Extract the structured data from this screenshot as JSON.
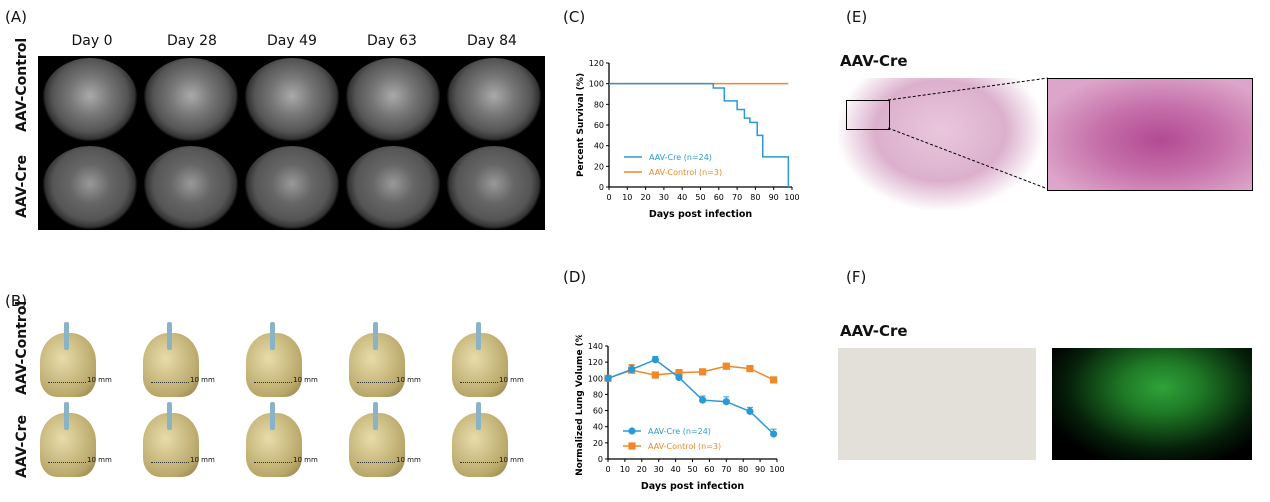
{
  "panels": {
    "a": "(A)",
    "b": "(B)",
    "c": "(C)",
    "d": "(D)",
    "e": "(E)",
    "f": "(F)"
  },
  "panel_a": {
    "days": [
      "Day 0",
      "Day 28",
      "Day 49",
      "Day 63",
      "Day 84"
    ],
    "rows": [
      "AAV-Control",
      "AAV-Cre"
    ]
  },
  "panel_b": {
    "rows": [
      "AAV-Control",
      "AAV-Cre"
    ],
    "scale_label": "10 mm"
  },
  "panel_e": {
    "title": "AAV-Cre"
  },
  "panel_f": {
    "title": "AAV-Cre"
  },
  "colors": {
    "cre": "#2a9ad6",
    "control": "#f0882a"
  },
  "chart_data": [
    {
      "type": "line",
      "title": "",
      "xlabel": "Days post infection",
      "ylabel": "Percent Survival (%)",
      "xlim": [
        0,
        100
      ],
      "ylim": [
        0,
        120
      ],
      "xticks": [
        "0",
        "10",
        "20",
        "30",
        "40",
        "50",
        "60",
        "70",
        "80",
        "90",
        "100"
      ],
      "yticks": [
        "0",
        "20",
        "40",
        "60",
        "80",
        "100",
        "120"
      ],
      "legend": "bottom-left",
      "step": true,
      "series": [
        {
          "name": "AAV-Cre (n=24)",
          "x": [
            0,
            57,
            63,
            70,
            74,
            77,
            81,
            84,
            98
          ],
          "y": [
            100,
            95.8,
            83.3,
            75,
            66.7,
            62.5,
            50,
            29.2,
            0
          ]
        },
        {
          "name": "AAV-Control (n=3)",
          "x": [
            0,
            98
          ],
          "y": [
            100,
            100
          ]
        }
      ]
    },
    {
      "type": "line",
      "title": "",
      "xlabel": "Days post infection",
      "ylabel": "Normalized Lung Volume (%)",
      "xlim": [
        0,
        100
      ],
      "ylim": [
        0,
        140
      ],
      "xticks": [
        "0",
        "10",
        "20",
        "30",
        "40",
        "50",
        "60",
        "70",
        "80",
        "90",
        "100"
      ],
      "yticks": [
        "0",
        "20",
        "40",
        "60",
        "80",
        "100",
        "120",
        "140"
      ],
      "legend": "bottom-left",
      "series": [
        {
          "name": "AAV-Cre (n=24)",
          "marker": "circle",
          "x": [
            0,
            14,
            28,
            42,
            56,
            70,
            84,
            98
          ],
          "y": [
            100,
            111,
            123,
            101,
            73,
            71,
            59,
            31
          ],
          "error": [
            2,
            5,
            4,
            3,
            5,
            6,
            5,
            6
          ]
        },
        {
          "name": "AAV-Control (n=3)",
          "marker": "square",
          "x": [
            0,
            14,
            28,
            42,
            56,
            70,
            84,
            98
          ],
          "y": [
            100,
            110,
            104,
            107,
            108,
            115,
            112,
            98
          ],
          "error": [
            2,
            7,
            3,
            2,
            2,
            2,
            2,
            2
          ]
        }
      ]
    }
  ]
}
